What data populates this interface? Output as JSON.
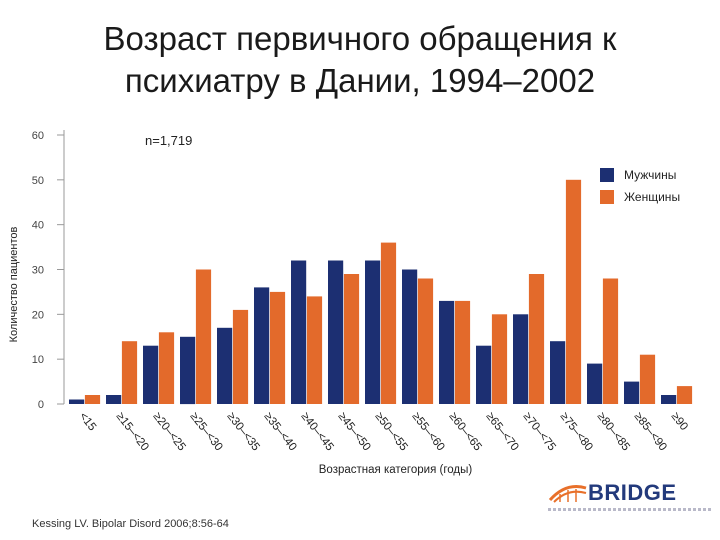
{
  "slide": {
    "title_line1": "Возраст первичного обращения к",
    "title_line2": "психиатру в Дании, 1994–2002",
    "citation": "Kessing LV. Bipolar Disord 2006;8:56-64"
  },
  "logo": {
    "text": "BRIDGE",
    "color": "#233a7c",
    "accent": "#e8702a"
  },
  "chart_data": {
    "type": "bar",
    "annotation": "n=1,719",
    "xlabel": "Возрастная категория (годы)",
    "ylabel": "Количество пациентов",
    "ylim": [
      0,
      60
    ],
    "yticks": [
      0,
      10,
      20,
      30,
      40,
      50,
      60
    ],
    "legend_position": "top-right",
    "categories": [
      "<15",
      "≥15–<20",
      "≥20–<25",
      "≥25–<30",
      "≥30–<35",
      "≥35–<40",
      "≥40–<45",
      "≥45–<50",
      "≥50–<55",
      "≥55–<60",
      "≥60–<65",
      "≥65–<70",
      "≥70–<75",
      "≥75–<80",
      "≥80–<85",
      "≥85–<90",
      "≥90"
    ],
    "series": [
      {
        "name": "Мужчины",
        "color": "#1c2f72",
        "values": [
          1,
          2,
          13,
          15,
          17,
          26,
          32,
          32,
          32,
          30,
          23,
          13,
          20,
          14,
          9,
          5,
          2
        ]
      },
      {
        "name": "Женщины",
        "color": "#e36a2b",
        "values": [
          2,
          14,
          16,
          30,
          21,
          25,
          24,
          29,
          36,
          28,
          23,
          20,
          29,
          50,
          28,
          11,
          4
        ]
      }
    ]
  }
}
